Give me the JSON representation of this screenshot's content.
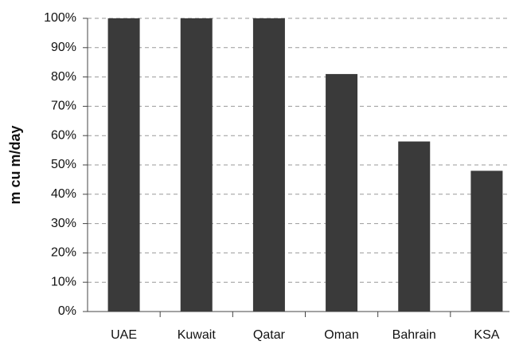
{
  "chart_data": {
    "type": "bar",
    "y_label": "m cu m/day",
    "categories": [
      "UAE",
      "Kuwait",
      "Qatar",
      "Oman",
      "Bahrain",
      "KSA"
    ],
    "values": [
      100,
      100,
      100,
      81,
      58,
      48
    ],
    "color": "#3a3a3a",
    "ylim": [
      0,
      100
    ],
    "yticks": [
      {
        "value": 0,
        "label": "0%"
      },
      {
        "value": 10,
        "label": "10%"
      },
      {
        "value": 20,
        "label": "20%"
      },
      {
        "value": 30,
        "label": "30%"
      },
      {
        "value": 40,
        "label": "40%"
      },
      {
        "value": 50,
        "label": "50%"
      },
      {
        "value": 60,
        "label": "60%"
      },
      {
        "value": 70,
        "label": "70%"
      },
      {
        "value": 80,
        "label": "80%"
      },
      {
        "value": 90,
        "label": "90%"
      },
      {
        "value": 100,
        "label": "100%"
      }
    ],
    "grid": true
  }
}
